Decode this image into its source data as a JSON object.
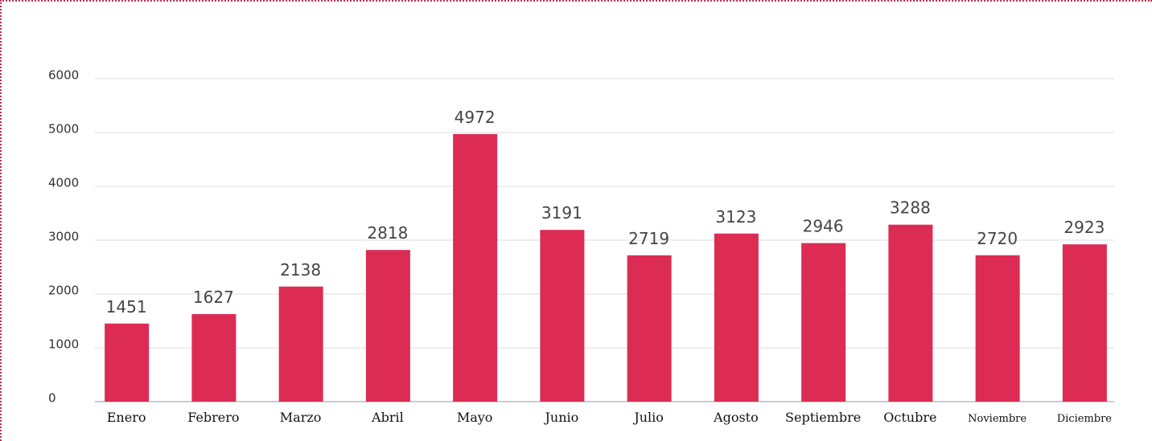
{
  "chart_data": {
    "type": "bar",
    "categories": [
      "Enero",
      "Febrero",
      "Marzo",
      "Abril",
      "Mayo",
      "Junio",
      "Julio",
      "Agosto",
      "Septiembre",
      "Octubre",
      "Noviembre",
      "Diciembre"
    ],
    "values": [
      1451,
      1627,
      2138,
      2818,
      4972,
      3191,
      2719,
      3123,
      2946,
      3288,
      2720,
      2923
    ],
    "color": "#dc2c54",
    "ylim": [
      0,
      6000
    ],
    "yticks": [
      0,
      1000,
      2000,
      3000,
      4000,
      5000,
      6000
    ],
    "grid": true
  }
}
